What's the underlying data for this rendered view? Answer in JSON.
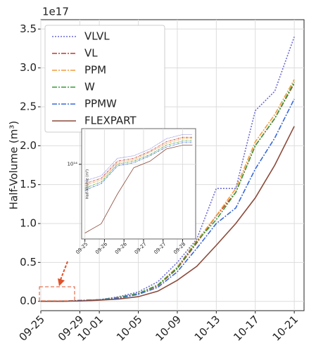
{
  "chart_data": [
    {
      "type": "line",
      "y_offset_label": "1e17",
      "ylabel": "Half-Volume (m³)",
      "x": [
        "09-25",
        "09-27",
        "09-29",
        "10-01",
        "10-03",
        "10-05",
        "10-07",
        "10-09",
        "10-11",
        "10-13",
        "10-15",
        "10-17",
        "10-19",
        "10-21"
      ],
      "xlim": [
        "09-25",
        "10-22"
      ],
      "xticks": [
        "09-25",
        "09-29",
        "10-01",
        "10-05",
        "10-09",
        "10-13",
        "10-17",
        "10-21"
      ],
      "ylim": [
        -0.12,
        3.62
      ],
      "yticks": [
        {
          "value": 0,
          "label": "0.0"
        },
        0.5,
        {
          "value": 1,
          "label": "1.0"
        },
        1.5,
        {
          "value": 2,
          "label": "2.0"
        },
        2.5,
        {
          "value": 3,
          "label": "3.0"
        },
        3.5
      ],
      "grid": true,
      "legend": "upper left",
      "series": [
        {
          "name": "VLVL",
          "color": "#6b6bd6",
          "dash": "2,2",
          "values": [
            0,
            0,
            0.01,
            0.02,
            0.06,
            0.12,
            0.25,
            0.5,
            0.8,
            1.45,
            1.45,
            2.45,
            2.7,
            3.4
          ]
        },
        {
          "name": "VL",
          "color": "#c0392b",
          "dash": "7,2,2,2",
          "values": [
            0,
            0,
            0.01,
            0.02,
            0.05,
            0.1,
            0.2,
            0.42,
            0.75,
            1.1,
            1.4,
            2.0,
            2.35,
            2.8
          ]
        },
        {
          "name": "PPM",
          "color": "#f39c3c",
          "dash": "7,2,2,2",
          "values": [
            0,
            0,
            0.01,
            0.02,
            0.05,
            0.1,
            0.21,
            0.44,
            0.78,
            1.1,
            1.45,
            2.05,
            2.4,
            2.85
          ]
        },
        {
          "name": "W",
          "color": "#3a9a3a",
          "dash": "7,2,2,2",
          "values": [
            0,
            0,
            0.01,
            0.02,
            0.05,
            0.1,
            0.21,
            0.43,
            0.77,
            1.05,
            1.4,
            2.0,
            2.35,
            2.82
          ]
        },
        {
          "name": "PPMW",
          "color": "#3a6ad8",
          "dash": "7,2,2,2",
          "values": [
            0,
            0,
            0.01,
            0.02,
            0.04,
            0.09,
            0.18,
            0.38,
            0.68,
            1.0,
            1.2,
            1.7,
            2.1,
            2.6
          ]
        },
        {
          "name": "FLEXPART",
          "color": "#8b4a3a",
          "dash": "none",
          "values": [
            0,
            0,
            0.005,
            0.015,
            0.03,
            0.06,
            0.13,
            0.27,
            0.45,
            0.72,
            1.0,
            1.33,
            1.75,
            2.25
          ]
        }
      ]
    },
    {
      "type": "line",
      "ylabel": "Half-Volume (m³)",
      "log_y": true,
      "x": [
        25.0,
        25.5,
        26.0,
        26.5,
        27.0,
        27.5,
        28.0,
        28.3
      ],
      "xlim": [
        24.9,
        28.4
      ],
      "xticks": [
        {
          "value": 25.0,
          "label": "09-25"
        },
        {
          "value": 25.6,
          "label": "09-26"
        },
        {
          "value": 26.2,
          "label": "09-26"
        },
        {
          "value": 26.8,
          "label": "09-27"
        },
        {
          "value": 27.4,
          "label": "09-27"
        },
        {
          "value": 28.0,
          "label": "09-28"
        }
      ],
      "ylim": [
        10000000000000.0,
        300000000000000.0
      ],
      "yticks": [
        {
          "value": 100000000000000.0,
          "label": "10¹⁴"
        }
      ],
      "grid": true,
      "series": [
        {
          "color": "#6b6bd6",
          "dash": "1,1",
          "values": [
            60000000000000.0,
            70000000000000.0,
            120000000000000.0,
            130000000000000.0,
            160000000000000.0,
            220000000000000.0,
            250000000000000.0,
            250000000000000.0
          ]
        },
        {
          "color": "#c0392b",
          "dash": "3,1,1,1",
          "values": [
            55000000000000.0,
            65000000000000.0,
            110000000000000.0,
            120000000000000.0,
            150000000000000.0,
            200000000000000.0,
            230000000000000.0,
            230000000000000.0
          ]
        },
        {
          "color": "#f39c3c",
          "dash": "3,1,1,1",
          "values": [
            52000000000000.0,
            62000000000000.0,
            105000000000000.0,
            115000000000000.0,
            145000000000000.0,
            190000000000000.0,
            220000000000000.0,
            220000000000000.0
          ]
        },
        {
          "color": "#3a9a3a",
          "dash": "3,1,1,1",
          "values": [
            48000000000000.0,
            58000000000000.0,
            100000000000000.0,
            110000000000000.0,
            135000000000000.0,
            180000000000000.0,
            205000000000000.0,
            205000000000000.0
          ]
        },
        {
          "color": "#3a6ad8",
          "dash": "3,1,1,1",
          "values": [
            45000000000000.0,
            55000000000000.0,
            95000000000000.0,
            105000000000000.0,
            130000000000000.0,
            170000000000000.0,
            195000000000000.0,
            195000000000000.0
          ]
        },
        {
          "color": "#8b4a3a",
          "dash": "none",
          "values": [
            12000000000000.0,
            16000000000000.0,
            40000000000000.0,
            90000000000000.0,
            110000000000000.0,
            160000000000000.0,
            180000000000000.0,
            180000000000000.0
          ]
        }
      ]
    }
  ]
}
